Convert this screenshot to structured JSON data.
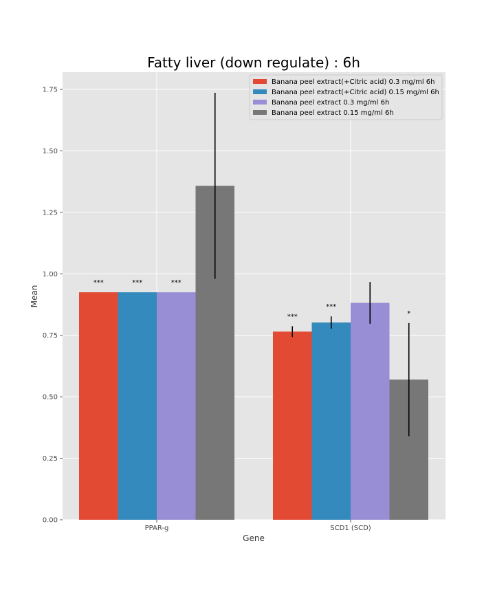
{
  "chart_data": {
    "type": "bar",
    "title": "Fatty liver (down regulate) : 6h",
    "xlabel": "Gene",
    "ylabel": "Mean",
    "categories": [
      "PPAR-g",
      "SCD1 (SCD)"
    ],
    "ylim": [
      0,
      1.82
    ],
    "yticks": [
      "0.00",
      "0.25",
      "0.50",
      "0.75",
      "1.00",
      "1.25",
      "1.50",
      "1.75"
    ],
    "grid": true,
    "legend_position": "top-right",
    "series": [
      {
        "name": "Banana peel extract(+Citric acid) 0.3 mg/ml 6h",
        "color": "#e24a33",
        "values": [
          0.925,
          0.765
        ],
        "errors": [
          0,
          0.022
        ],
        "significance": [
          "***",
          "***"
        ]
      },
      {
        "name": "Banana peel extract(+Citric acid) 0.15 mg/ml 6h",
        "color": "#348abd",
        "values": [
          0.925,
          0.802
        ],
        "errors": [
          0,
          0.025
        ],
        "significance": [
          "***",
          "***"
        ]
      },
      {
        "name": "Banana peel extract 0.3 mg/ml 6h",
        "color": "#988ed5",
        "values": [
          0.925,
          0.882
        ],
        "errors": [
          0,
          0.085
        ],
        "significance": [
          "***",
          ""
        ]
      },
      {
        "name": "Banana peel extract 0.15 mg/ml 6h",
        "color": "#777777",
        "values": [
          1.358,
          0.57
        ],
        "errors": [
          0.378,
          0.23
        ],
        "significance": [
          "",
          "*"
        ]
      }
    ]
  }
}
